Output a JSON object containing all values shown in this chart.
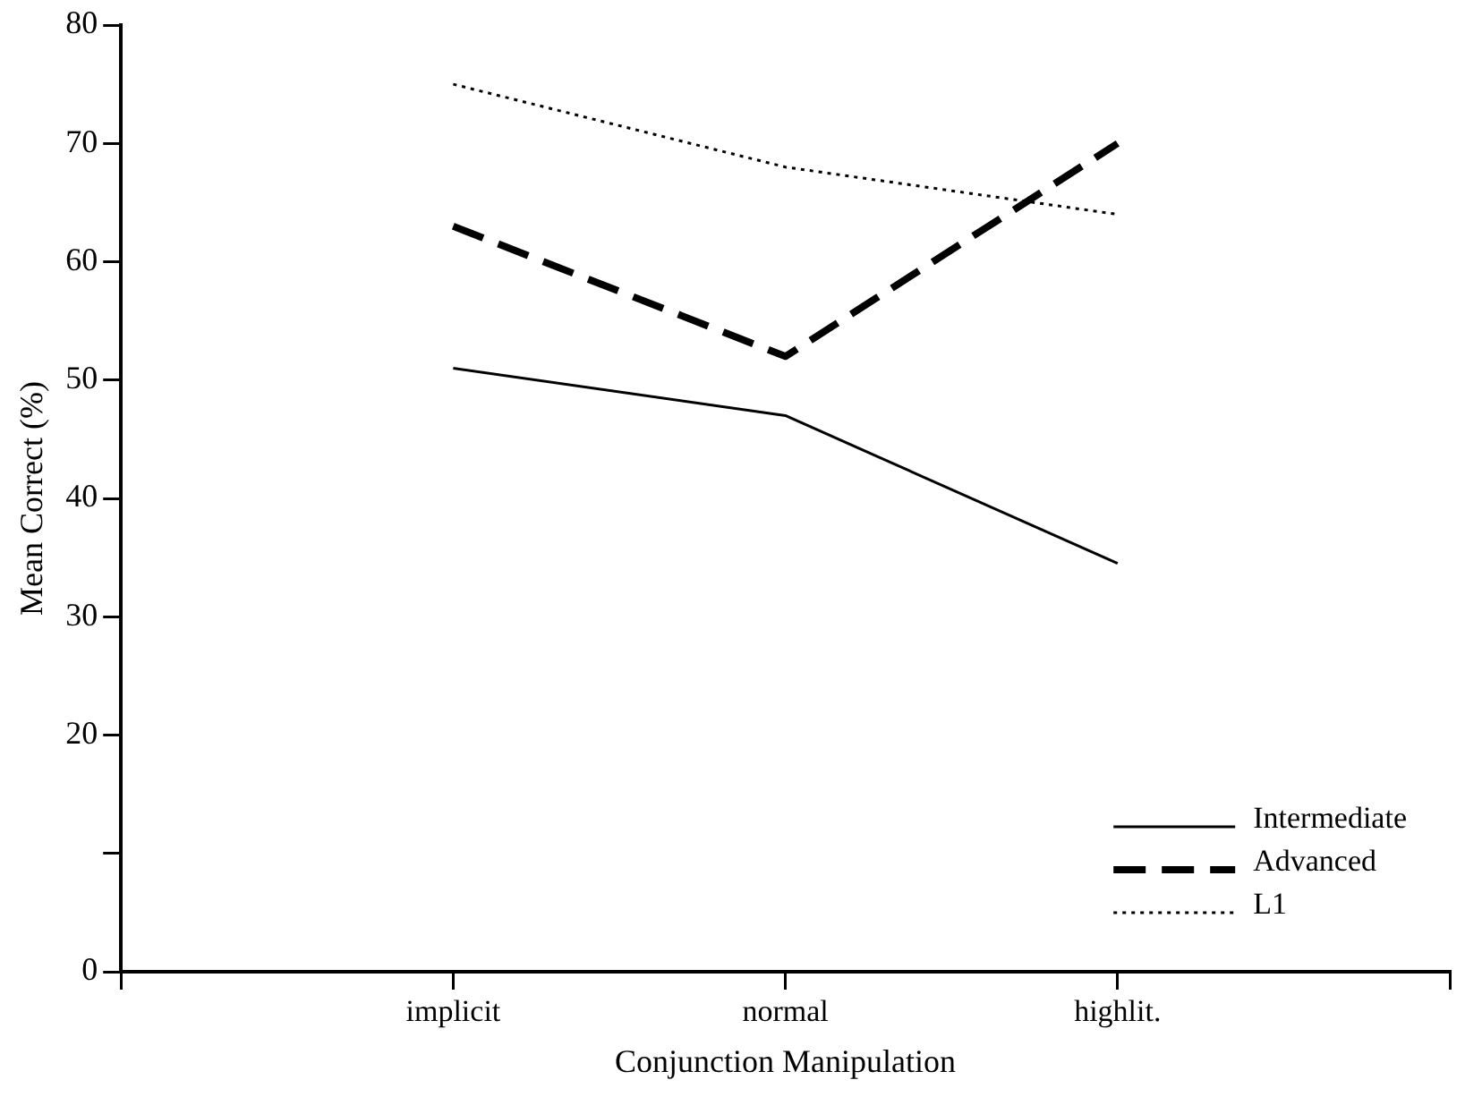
{
  "chart_data": {
    "type": "line",
    "xlabel": "Conjunction Manipulation",
    "ylabel": "Mean Correct (%)",
    "categories": [
      null,
      "implicit",
      "normal",
      "highlit.",
      null
    ],
    "series": [
      {
        "name": "Intermediate",
        "color": "#000000",
        "line_style": "solid",
        "values": [
          null,
          51,
          47,
          34.5,
          null
        ]
      },
      {
        "name": "Advanced",
        "color": "#000000",
        "line_style": "dashed",
        "values": [
          null,
          63,
          52,
          70,
          null
        ]
      },
      {
        "name": "L1",
        "color": "#000000",
        "line_style": "dotted",
        "values": [
          null,
          75,
          68,
          64,
          null
        ]
      }
    ],
    "ylim": [
      0,
      80
    ],
    "yticks": [
      0,
      {
        "value": 10,
        "label": null
      },
      20,
      30,
      40,
      50,
      60,
      70,
      80
    ],
    "grid": false,
    "legend": "bottom right",
    "marker": "none"
  }
}
